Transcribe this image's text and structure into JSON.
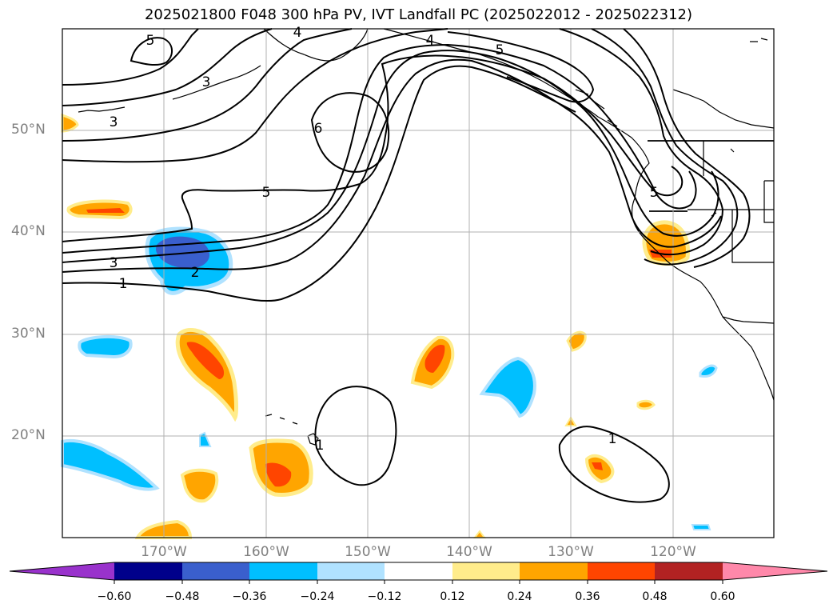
{
  "title": "2025021800 F048 300 hPa PV, IVT Landfall PC (2025022012 - 2025022312)",
  "lon_labels": [
    "170°W",
    "160°W",
    "150°W",
    "140°W",
    "130°W",
    "120°W"
  ],
  "lat_labels": [
    "50°N",
    "40°N",
    "30°N",
    "20°N"
  ],
  "colorbar": {
    "ticks": [
      "−0.60",
      "−0.48",
      "−0.36",
      "−0.24",
      "−0.12",
      "0.12",
      "0.24",
      "0.36",
      "0.48",
      "0.60"
    ],
    "colors": [
      "#9932cc",
      "#00008b",
      "#3a5fcd",
      "#00bfff",
      "#b0e2ff",
      "#ffffff",
      "#ffec8b",
      "#ffa500",
      "#ff4500",
      "#b22222",
      "#ff88aa"
    ]
  },
  "contour_labels": [
    "5",
    "4",
    "3",
    "4",
    "5",
    "3",
    "6",
    "5",
    "5",
    "3",
    "2",
    "1",
    "1",
    "1"
  ],
  "colors": {
    "land_outline": "#000000",
    "gridline": "#b0b0b0",
    "contour": "#000000"
  }
}
